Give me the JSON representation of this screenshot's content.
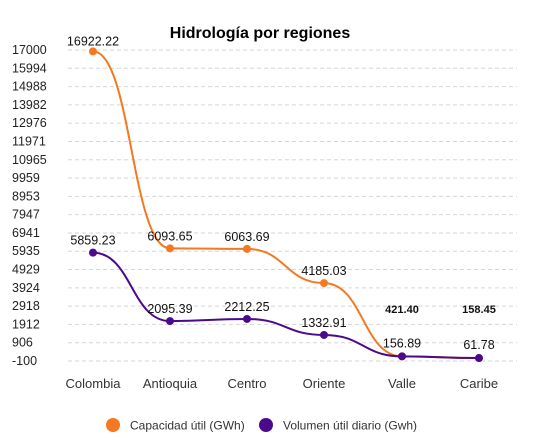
{
  "chart_data": {
    "type": "line",
    "title": "Hidrología por regiones",
    "xlabel": "",
    "ylabel": "",
    "categories": [
      "Colombia",
      "Antioquia",
      "Centro",
      "Oriente",
      "Valle",
      "Caribe"
    ],
    "y_ticks": [
      17000,
      15994,
      14988,
      13982,
      12976,
      11971,
      10965,
      9959,
      8953,
      7947,
      6941,
      5935,
      4929,
      3924,
      2918,
      1912,
      906,
      -100
    ],
    "ylim": [
      -100,
      17000
    ],
    "grid": true,
    "legend_position": "bottom",
    "series": [
      {
        "name": "Capacidad útil (GWh)",
        "color": "#F47920",
        "values": [
          16922.22,
          6093.65,
          6063.69,
          4185.03,
          156.89,
          61.78
        ],
        "labels": [
          "16922.22",
          "6093.65",
          "6063.69",
          "4185.03",
          "",
          ""
        ]
      },
      {
        "name": "Volumen útil diario (Gwh)",
        "color": "#4B0A8C",
        "values": [
          5859.23,
          2095.39,
          2212.25,
          1332.91,
          156.89,
          61.78
        ],
        "labels": [
          "5859.23",
          "2095.39",
          "2212.25",
          "1332.91",
          "156.89",
          "61.78"
        ]
      }
    ],
    "annotations": [
      {
        "text": "421.40",
        "category": "Valle"
      },
      {
        "text": "158.45",
        "category": "Caribe"
      }
    ]
  }
}
